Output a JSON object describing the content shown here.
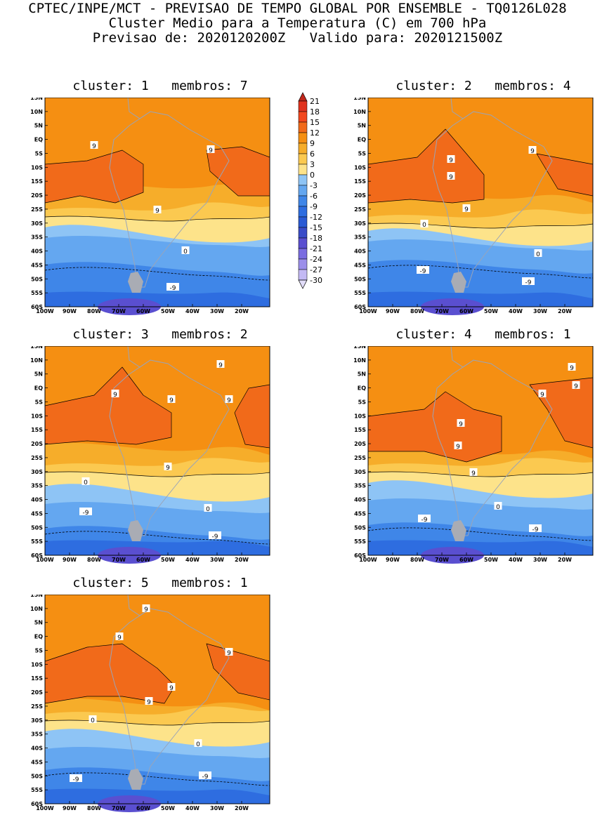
{
  "header": {
    "line1": "CPTEC/INPE/MCT - PREVISAO DE TEMPO GLOBAL POR ENSEMBLE - TQ0126L028",
    "line2": "Cluster Medio para a Temperatura (C) em 700 hPa",
    "line3": "Previsao de: 2020120200Z   Valido para: 2020121500Z"
  },
  "axes": {
    "lat_labels": [
      "15N",
      "10N",
      "5N",
      "EQ",
      "5S",
      "10S",
      "15S",
      "20S",
      "25S",
      "30S",
      "35S",
      "40S",
      "45S",
      "50S",
      "55S",
      "60S"
    ],
    "lon_labels": [
      "100W",
      "90W",
      "80W",
      "70W",
      "60W",
      "50W",
      "40W",
      "30W",
      "20W"
    ]
  },
  "panels": [
    {
      "title": "cluster: 1   membros: 7",
      "contour_labels": [
        "9",
        "9",
        "9",
        "0",
        "-9"
      ]
    },
    {
      "title": "cluster: 2   membros: 4",
      "contour_labels": [
        "9",
        "9",
        "9",
        "9",
        "0",
        "0",
        "-9",
        "-9"
      ]
    },
    {
      "title": "cluster: 3   membros: 2",
      "contour_labels": [
        "9",
        "9",
        "9",
        "9",
        "9",
        "0",
        "0",
        "-9",
        "-9"
      ]
    },
    {
      "title": "cluster: 4   membros: 1",
      "contour_labels": [
        "9",
        "9",
        "9",
        "9",
        "9",
        "9",
        "0",
        "-9",
        "-9"
      ]
    },
    {
      "title": "cluster: 5   membros: 1",
      "contour_labels": [
        "9",
        "9",
        "9",
        "9",
        "9",
        "0",
        "0",
        "-9",
        "-9"
      ]
    }
  ],
  "colorbar": {
    "labels": [
      "21",
      "18",
      "15",
      "12",
      "9",
      "6",
      "3",
      "0",
      "-3",
      "-6",
      "-9",
      "-12",
      "-15",
      "-18",
      "-21",
      "-24",
      "-27",
      "-30"
    ],
    "colors": [
      "#c0271b",
      "#e0331e",
      "#f2481e",
      "#f16a1a",
      "#f58f12",
      "#f6ad2a",
      "#fbc950",
      "#fde38a",
      "#8ec4f5",
      "#64a7f0",
      "#3f86e8",
      "#2e6de0",
      "#2a5ad4",
      "#3a4cc8",
      "#5a4fd0",
      "#7a6ce0",
      "#9c8fea",
      "#c3b9f4",
      "#e2ddf9"
    ]
  }
}
